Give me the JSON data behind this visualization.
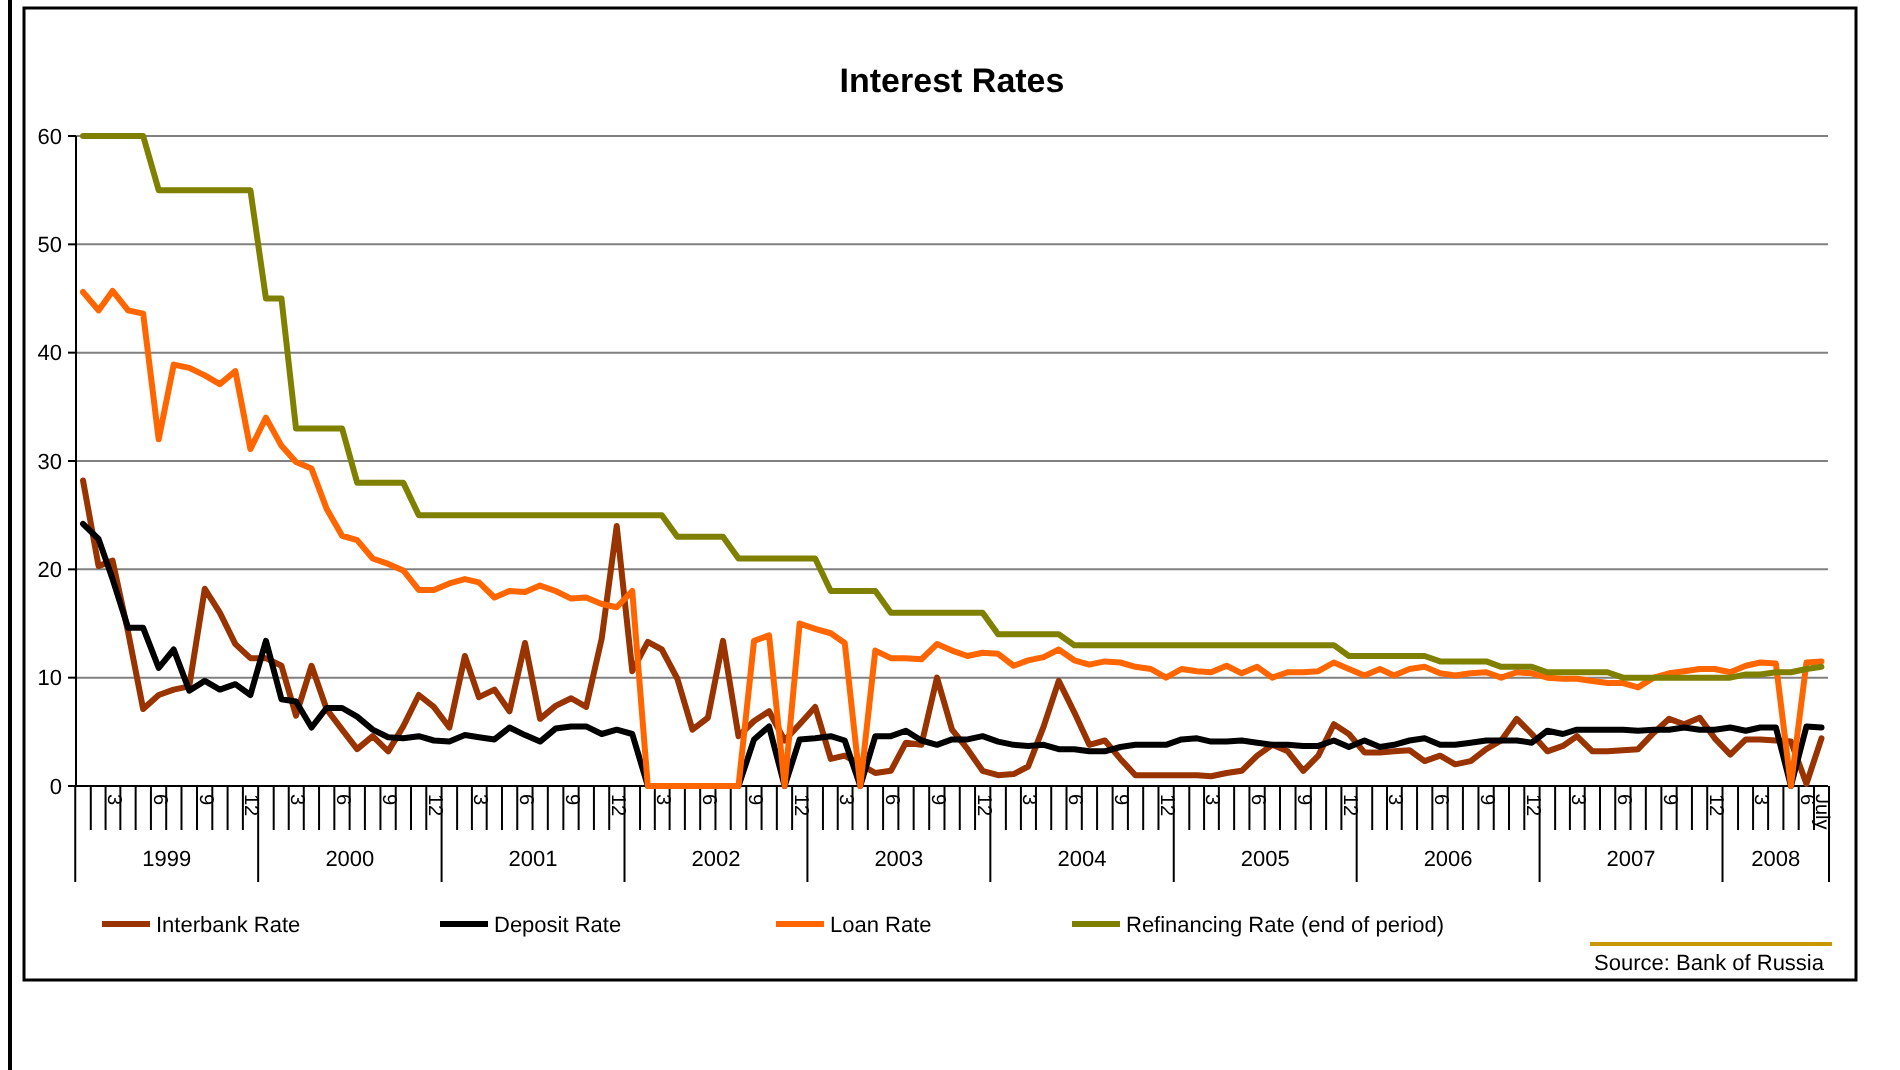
{
  "chart_data": {
    "type": "line",
    "title": "Interest Rates",
    "x": [
      "1999-01",
      "1999-02",
      "1999-03",
      "1999-04",
      "1999-05",
      "1999-06",
      "1999-07",
      "1999-08",
      "1999-09",
      "1999-10",
      "1999-11",
      "1999-12",
      "2000-01",
      "2000-02",
      "2000-03",
      "2000-04",
      "2000-05",
      "2000-06",
      "2000-07",
      "2000-08",
      "2000-09",
      "2000-10",
      "2000-11",
      "2000-12",
      "2001-01",
      "2001-02",
      "2001-03",
      "2001-04",
      "2001-05",
      "2001-06",
      "2001-07",
      "2001-08",
      "2001-09",
      "2001-10",
      "2001-11",
      "2001-12",
      "2002-01",
      "2002-02",
      "2002-03",
      "2002-04",
      "2002-05",
      "2002-06",
      "2002-07",
      "2002-08",
      "2002-09",
      "2002-10",
      "2002-11",
      "2002-12",
      "2003-01",
      "2003-02",
      "2003-03",
      "2003-04",
      "2003-05",
      "2003-06",
      "2003-07",
      "2003-08",
      "2003-09",
      "2003-10",
      "2003-11",
      "2003-12",
      "2004-01",
      "2004-02",
      "2004-03",
      "2004-04",
      "2004-05",
      "2004-06",
      "2004-07",
      "2004-08",
      "2004-09",
      "2004-10",
      "2004-11",
      "2004-12",
      "2005-01",
      "2005-02",
      "2005-03",
      "2005-04",
      "2005-05",
      "2005-06",
      "2005-07",
      "2005-08",
      "2005-09",
      "2005-10",
      "2005-11",
      "2005-12",
      "2006-01",
      "2006-02",
      "2006-03",
      "2006-04",
      "2006-05",
      "2006-06",
      "2006-07",
      "2006-08",
      "2006-09",
      "2006-10",
      "2006-11",
      "2006-12",
      "2007-01",
      "2007-02",
      "2007-03",
      "2007-04",
      "2007-05",
      "2007-06",
      "2007-07",
      "2007-08",
      "2007-09",
      "2007-10",
      "2007-11",
      "2007-12",
      "2008-01",
      "2008-02",
      "2008-03",
      "2008-04",
      "2008-05",
      "2008-06",
      "2008-07"
    ],
    "series": [
      {
        "name": "Interbank Rate",
        "color": "#993300",
        "values": [
          28.2,
          20.3,
          20.8,
          14.2,
          7.1,
          8.4,
          8.9,
          9.2,
          18.2,
          16.0,
          13.1,
          11.8,
          11.8,
          11.1,
          6.5,
          11.1,
          7.1,
          5.2,
          3.4,
          4.6,
          3.2,
          5.5,
          8.4,
          7.3,
          5.4,
          12.0,
          8.2,
          8.9,
          6.9,
          13.2,
          6.2,
          7.4,
          8.1,
          7.3,
          13.6,
          24.0,
          10.6,
          13.3,
          12.6,
          9.9,
          5.2,
          6.3,
          13.4,
          4.6,
          6.0,
          6.9,
          4.2,
          5.7,
          7.3,
          2.5,
          2.8,
          2.0,
          1.2,
          1.4,
          4.0,
          3.8,
          10.0,
          5.2,
          3.4,
          1.4,
          1.0,
          1.1,
          1.8,
          5.5,
          9.7,
          6.8,
          3.8,
          4.2,
          2.5,
          1.0,
          1.0,
          1.0,
          1.0,
          1.0,
          0.9,
          1.2,
          1.4,
          2.8,
          3.8,
          3.2,
          1.4,
          2.8,
          5.7,
          4.8,
          3.1,
          3.1,
          3.2,
          3.3,
          2.3,
          2.8,
          2.0,
          2.3,
          3.4,
          4.2,
          6.2,
          4.8,
          3.2,
          3.7,
          4.6,
          3.2,
          3.2,
          3.3,
          3.4,
          4.9,
          6.2,
          5.7,
          6.3,
          4.4,
          2.9,
          4.3,
          4.3,
          4.2,
          4.1,
          0.2,
          4.4
        ]
      },
      {
        "name": "Deposit Rate",
        "color": "#000000",
        "values": [
          24.2,
          22.8,
          19.1,
          14.6,
          14.6,
          10.9,
          12.6,
          8.8,
          9.7,
          8.9,
          9.4,
          8.4,
          13.4,
          8.0,
          7.8,
          5.4,
          7.2,
          7.2,
          6.4,
          5.2,
          4.5,
          4.4,
          4.6,
          4.2,
          4.1,
          4.7,
          4.5,
          4.3,
          5.4,
          4.7,
          4.1,
          5.3,
          5.5,
          5.5,
          4.8,
          5.2,
          4.8,
          0,
          0,
          0,
          0,
          0,
          0,
          0,
          4.3,
          5.5,
          0,
          4.3,
          4.4,
          4.6,
          4.2,
          0,
          4.6,
          4.6,
          5.1,
          4.2,
          3.8,
          4.3,
          4.3,
          4.6,
          4.1,
          3.8,
          3.7,
          3.8,
          3.4,
          3.4,
          3.2,
          3.2,
          3.6,
          3.8,
          3.8,
          3.8,
          4.3,
          4.4,
          4.1,
          4.1,
          4.2,
          4.0,
          3.8,
          3.8,
          3.7,
          3.7,
          4.2,
          3.6,
          4.2,
          3.6,
          3.8,
          4.2,
          4.4,
          3.8,
          3.8,
          4.0,
          4.2,
          4.2,
          4.2,
          4.0,
          5.1,
          4.8,
          5.2,
          5.2,
          5.2,
          5.2,
          5.1,
          5.2,
          5.2,
          5.4,
          5.2,
          5.2,
          5.4,
          5.1,
          5.4,
          5.4,
          0,
          5.5,
          5.4
        ]
      },
      {
        "name": "Loan Rate",
        "color": "#ff6600",
        "values": [
          45.6,
          43.9,
          45.7,
          43.9,
          43.6,
          32.0,
          38.9,
          38.6,
          37.9,
          37.1,
          38.3,
          31.1,
          34.0,
          31.4,
          29.9,
          29.3,
          25.6,
          23.1,
          22.7,
          21.0,
          20.5,
          19.9,
          18.1,
          18.1,
          18.7,
          19.1,
          18.8,
          17.4,
          18.0,
          17.9,
          18.5,
          18.0,
          17.3,
          17.4,
          16.8,
          16.5,
          18.0,
          0,
          0,
          0,
          0,
          0,
          0,
          0,
          13.4,
          13.9,
          0,
          15.0,
          14.5,
          14.1,
          13.2,
          0,
          12.5,
          11.8,
          11.8,
          11.7,
          13.1,
          12.5,
          12.0,
          12.3,
          12.2,
          11.1,
          11.6,
          11.9,
          12.6,
          11.6,
          11.2,
          11.5,
          11.4,
          11.0,
          10.8,
          10.0,
          10.8,
          10.6,
          10.5,
          11.1,
          10.4,
          11.0,
          10.0,
          10.5,
          10.5,
          10.6,
          11.4,
          10.8,
          10.2,
          10.8,
          10.2,
          10.8,
          11.0,
          10.4,
          10.2,
          10.4,
          10.5,
          10.0,
          10.5,
          10.4,
          10.0,
          9.9,
          9.9,
          9.7,
          9.5,
          9.5,
          9.1,
          10.0,
          10.4,
          10.6,
          10.8,
          10.8,
          10.5,
          11.1,
          11.4,
          11.3,
          0,
          11.4,
          11.5
        ]
      },
      {
        "name": "Refinancing Rate (end of period)",
        "color": "#808000",
        "values": [
          60,
          60,
          60,
          60,
          60,
          55,
          55,
          55,
          55,
          55,
          55,
          55,
          45,
          45,
          33,
          33,
          33,
          33,
          28,
          28,
          28,
          28,
          25,
          25,
          25,
          25,
          25,
          25,
          25,
          25,
          25,
          25,
          25,
          25,
          25,
          25,
          25,
          25,
          25,
          23,
          23,
          23,
          23,
          21,
          21,
          21,
          21,
          21,
          21,
          18,
          18,
          18,
          18,
          16,
          16,
          16,
          16,
          16,
          16,
          16,
          14,
          14,
          14,
          14,
          14,
          13,
          13,
          13,
          13,
          13,
          13,
          13,
          13,
          13,
          13,
          13,
          13,
          13,
          13,
          13,
          13,
          13,
          13,
          12,
          12,
          12,
          12,
          12,
          12,
          11.5,
          11.5,
          11.5,
          11.5,
          11,
          11,
          11,
          10.5,
          10.5,
          10.5,
          10.5,
          10.5,
          10,
          10,
          10,
          10,
          10,
          10,
          10,
          10,
          10.3,
          10.3,
          10.5,
          10.5,
          10.8,
          11
        ]
      }
    ],
    "xlim": [
      "1999-01-01",
      "2008-07-28"
    ],
    "xticks": [
      {
        "value": "1999-03",
        "label": "3"
      },
      {
        "value": "1999-06",
        "label": "6"
      },
      {
        "value": "1999-09",
        "label": "9"
      },
      {
        "value": "1999-12",
        "label": "12"
      },
      {
        "value": "2000-03",
        "label": "3"
      },
      {
        "value": "2000-06",
        "label": "6"
      },
      {
        "value": "2000-09",
        "label": "9"
      },
      {
        "value": "2000-12",
        "label": "12"
      },
      {
        "value": "2001-03",
        "label": "3"
      },
      {
        "value": "2001-06",
        "label": "6"
      },
      {
        "value": "2001-09",
        "label": "9"
      },
      {
        "value": "2001-12",
        "label": "12"
      },
      {
        "value": "2002-03",
        "label": "3"
      },
      {
        "value": "2002-06",
        "label": "6"
      },
      {
        "value": "2002-09",
        "label": "9"
      },
      {
        "value": "2002-12",
        "label": "12"
      },
      {
        "value": "2003-03",
        "label": "3"
      },
      {
        "value": "2003-06",
        "label": "6"
      },
      {
        "value": "2003-09",
        "label": "9"
      },
      {
        "value": "2003-12",
        "label": "12"
      },
      {
        "value": "2004-03",
        "label": "3"
      },
      {
        "value": "2004-06",
        "label": "6"
      },
      {
        "value": "2004-09",
        "label": "9"
      },
      {
        "value": "2004-12",
        "label": "12"
      },
      {
        "value": "2005-03",
        "label": "3"
      },
      {
        "value": "2005-06",
        "label": "6"
      },
      {
        "value": "2005-09",
        "label": "9"
      },
      {
        "value": "2005-12",
        "label": "12"
      },
      {
        "value": "2006-03",
        "label": "3"
      },
      {
        "value": "2006-06",
        "label": "6"
      },
      {
        "value": "2006-09",
        "label": "9"
      },
      {
        "value": "2006-12",
        "label": "12"
      },
      {
        "value": "2007-03",
        "label": "3"
      },
      {
        "value": "2007-06",
        "label": "6"
      },
      {
        "value": "2007-09",
        "label": "9"
      },
      {
        "value": "2007-12",
        "label": "12"
      },
      {
        "value": "2008-03",
        "label": "3"
      },
      {
        "value": "2008-06",
        "label": "6"
      },
      {
        "value": "2008-07",
        "label": "July"
      }
    ],
    "ylim": [
      0,
      60
    ],
    "yticks": [
      0,
      10,
      20,
      30,
      40,
      50,
      60
    ],
    "grid": "y",
    "legend": "bottom",
    "marker": "none",
    "line_style": "solid",
    "annotations": [
      "1999",
      "2000",
      "2001",
      "2002",
      "2003",
      "2004",
      "2005",
      "2006",
      "2007",
      "2008",
      "Source: Bank of Russia"
    ]
  }
}
